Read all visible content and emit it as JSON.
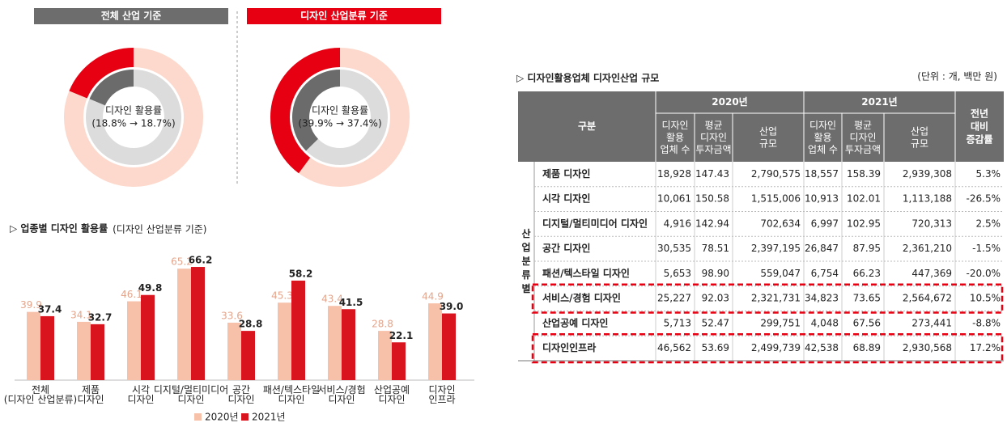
{
  "chart_data": [
    {
      "type": "donut",
      "title": "전체 산업 기준",
      "header_color": "#6d6d6d",
      "values": [
        18.8,
        18.7
      ],
      "colors": [
        "#e60012",
        "#6b6b6b"
      ],
      "track_colors": [
        "#fcd9cc",
        "#dcdcdc"
      ],
      "label": "디자인 활용률",
      "annotation": "(18.8% → 18.7%)"
    },
    {
      "type": "donut",
      "title": "디자인 산업분류 기준",
      "header_color": "#e60012",
      "values": [
        39.9,
        37.4
      ],
      "colors": [
        "#e60012",
        "#6b6b6b"
      ],
      "track_colors": [
        "#fcd9cc",
        "#dcdcdc"
      ],
      "label": "디자인 활용률",
      "annotation": "(39.9% → 37.4%)"
    },
    {
      "type": "bar",
      "title": "▷ 업종별 디자인 활용률",
      "subtitle": "(디자인 산업분류 기준)",
      "categories": [
        "전체\n(디자인 산업분류)",
        "제품\n디자인",
        "시각\n디자인",
        "디지털/멀티미디어\n디자인",
        "공간\n디자인",
        "패션/텍스타일\n디자인",
        "서비스/경험\n디자인",
        "산업공예\n디자인",
        "디자인\n인프라"
      ],
      "series": [
        {
          "name": "2020년",
          "color": "#f7c0a8",
          "values": [
            39.9,
            34.1,
            46.1,
            65.2,
            33.6,
            45.3,
            43.4,
            28.8,
            44.9
          ]
        },
        {
          "name": "2021년",
          "color": "#d9141f",
          "values": [
            37.4,
            32.7,
            49.8,
            66.2,
            28.8,
            58.2,
            41.5,
            22.1,
            39.0
          ],
          "value_labels": [
            "37.4",
            "32.7",
            "49.8",
            "66.2",
            "28.8",
            "58.2",
            "41.5",
            "22.1",
            "39.0"
          ]
        }
      ],
      "ylim": [
        0,
        70
      ],
      "legend": "bottom"
    }
  ],
  "table": {
    "title": "▷ 디자인활용업체 디자인산업 규모",
    "unit": "(단위 : 개, 백만 원)",
    "header": {
      "category": "구분",
      "years": [
        "2020년",
        "2021년"
      ],
      "columns": [
        "디자인\n활용\n업체 수",
        "평균\n디자인\n투자금액",
        "산업\n규모"
      ],
      "change": "전년\n대비\n증감률"
    },
    "group": "산업분류별",
    "rows": [
      {
        "label": "제품 디자인",
        "cells": [
          "18,928",
          "147.43",
          "2,790,575",
          "18,557",
          "158.39",
          "2,939,308",
          "5.3%"
        ]
      },
      {
        "label": "시각 디자인",
        "cells": [
          "10,061",
          "150.58",
          "1,515,006",
          "10,913",
          "102.01",
          "1,113,188",
          "-26.5%"
        ]
      },
      {
        "label": "디지털/멀티미디어 디자인",
        "cells": [
          "4,916",
          "142.94",
          "702,634",
          "6,997",
          "102.95",
          "720,313",
          "2.5%"
        ]
      },
      {
        "label": "공간 디자인",
        "cells": [
          "30,535",
          "78.51",
          "2,397,195",
          "26,847",
          "87.95",
          "2,361,210",
          "-1.5%"
        ]
      },
      {
        "label": "패션/텍스타일 디자인",
        "cells": [
          "5,653",
          "98.90",
          "559,047",
          "6,754",
          "66.23",
          "447,369",
          "-20.0%"
        ]
      },
      {
        "label": "서비스/경험 디자인",
        "cells": [
          "25,227",
          "92.03",
          "2,321,731",
          "34,823",
          "73.65",
          "2,564,672",
          "10.5%"
        ],
        "highlight": true
      },
      {
        "label": "산업공예 디자인",
        "cells": [
          "5,713",
          "52.47",
          "299,751",
          "4,048",
          "67.56",
          "273,441",
          "-8.8%"
        ]
      },
      {
        "label": "디자인인프라",
        "cells": [
          "46,562",
          "53.69",
          "2,499,739",
          "42,538",
          "68.89",
          "2,930,568",
          "17.2%"
        ],
        "highlight": true
      }
    ]
  }
}
